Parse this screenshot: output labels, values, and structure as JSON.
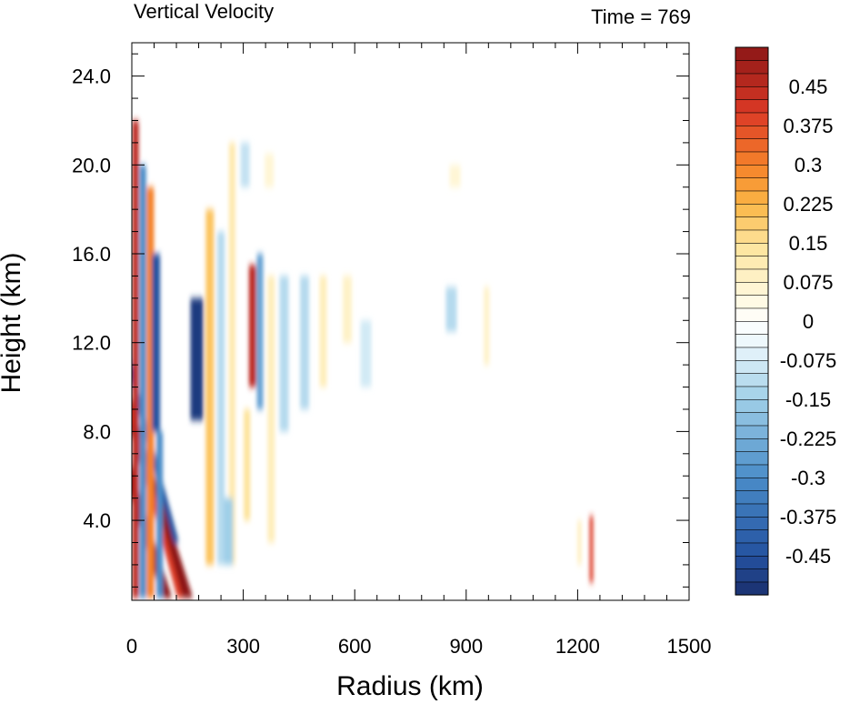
{
  "chart_data": {
    "type": "heatmap",
    "title_left": "Vertical Velocity",
    "title_right": "Time = 769",
    "xlabel": "Radius (km)",
    "ylabel": "Height (km)",
    "xlim": [
      0,
      1500
    ],
    "ylim": [
      0.4,
      25.5
    ],
    "xticks": [
      0,
      300,
      600,
      900,
      1200,
      1500
    ],
    "xtick_labels": [
      "0",
      "300",
      "600",
      "900",
      "1200",
      "1500"
    ],
    "yticks": [
      4,
      8,
      12,
      16,
      20,
      24
    ],
    "ytick_labels": [
      "4.0",
      "8.0",
      "12.0",
      "16.0",
      "20.0",
      "24.0"
    ],
    "colorbar": {
      "min": -0.525,
      "max": 0.525,
      "step": 0.025,
      "labels": [
        {
          "value": 0.45,
          "text": "0.45"
        },
        {
          "value": 0.375,
          "text": "0.375"
        },
        {
          "value": 0.3,
          "text": "0.3"
        },
        {
          "value": 0.225,
          "text": "0.225"
        },
        {
          "value": 0.15,
          "text": "0.15"
        },
        {
          "value": 0.075,
          "text": "0.075"
        },
        {
          "value": 0,
          "text": "0"
        },
        {
          "value": -0.075,
          "text": "-0.075"
        },
        {
          "value": -0.15,
          "text": "-0.15"
        },
        {
          "value": -0.225,
          "text": "-0.225"
        },
        {
          "value": -0.3,
          "text": "-0.3"
        },
        {
          "value": -0.375,
          "text": "-0.375"
        },
        {
          "value": -0.45,
          "text": "-0.45"
        }
      ],
      "stops": [
        {
          "v": -0.525,
          "color": "#1b2f6e"
        },
        {
          "v": -0.45,
          "color": "#2452a0"
        },
        {
          "v": -0.3,
          "color": "#4a8cc8"
        },
        {
          "v": -0.15,
          "color": "#9fcfe8"
        },
        {
          "v": -0.05,
          "color": "#e8f5fb"
        },
        {
          "v": 0,
          "color": "#ffffff"
        },
        {
          "v": 0.05,
          "color": "#fff8dc"
        },
        {
          "v": 0.15,
          "color": "#fde39a"
        },
        {
          "v": 0.225,
          "color": "#fbb545"
        },
        {
          "v": 0.3,
          "color": "#f5822a"
        },
        {
          "v": 0.4,
          "color": "#dc3a26"
        },
        {
          "v": 0.525,
          "color": "#8c1616"
        }
      ]
    },
    "features": [
      {
        "r": 95,
        "z0": 0.5,
        "z1": 17.2,
        "w": 0.6,
        "width": 11,
        "slope": -3.5
      },
      {
        "r": 150,
        "z0": 0.5,
        "z1": 17.2,
        "w": 0.55,
        "width": 12,
        "slope": -3.5
      },
      {
        "r": 175,
        "z0": 8.5,
        "z1": 14.0,
        "w": -0.5,
        "width": 14,
        "slope": 0
      },
      {
        "r": 120,
        "z0": 3.0,
        "z1": 16.5,
        "w": -0.45,
        "width": 6,
        "slope": -3
      },
      {
        "r": 130,
        "z0": 0.5,
        "z1": 16.0,
        "w": 0.4,
        "width": 6,
        "slope": -3
      },
      {
        "r": 10,
        "z0": 0.5,
        "z1": 22.0,
        "w": 0.45,
        "width": 7,
        "slope": 0
      },
      {
        "r": 30,
        "z0": 0.5,
        "z1": 20.0,
        "w": -0.3,
        "width": 7,
        "slope": 0
      },
      {
        "r": 50,
        "z0": 0.5,
        "z1": 19.0,
        "w": 0.3,
        "width": 8,
        "slope": 0
      },
      {
        "r": 65,
        "z0": 8.0,
        "z1": 16.0,
        "w": -0.45,
        "width": 9,
        "slope": 0
      },
      {
        "r": 75,
        "z0": 0.5,
        "z1": 8.0,
        "w": -0.3,
        "width": 7,
        "slope": 0
      },
      {
        "r": 210,
        "z0": 2.0,
        "z1": 18.0,
        "w": 0.2,
        "width": 9,
        "slope": 0
      },
      {
        "r": 240,
        "z0": 2.0,
        "z1": 17.0,
        "w": -0.12,
        "width": 8,
        "slope": 0
      },
      {
        "r": 270,
        "z0": 2.0,
        "z1": 21.0,
        "w": 0.12,
        "width": 7,
        "slope": 0
      },
      {
        "r": 325,
        "z0": 10.0,
        "z1": 15.5,
        "w": 0.45,
        "width": 8,
        "slope": 0
      },
      {
        "r": 345,
        "z0": 9.0,
        "z1": 16.0,
        "w": -0.25,
        "width": 7,
        "slope": 0
      },
      {
        "r": 310,
        "z0": 4.0,
        "z1": 9.0,
        "w": 0.15,
        "width": 7,
        "slope": 0
      },
      {
        "r": 375,
        "z0": 3.0,
        "z1": 15.0,
        "w": 0.1,
        "width": 8,
        "slope": 0
      },
      {
        "r": 410,
        "z0": 8.0,
        "z1": 15.0,
        "w": -0.12,
        "width": 10,
        "slope": 0
      },
      {
        "r": 465,
        "z0": 9.0,
        "z1": 15.0,
        "w": -0.12,
        "width": 10,
        "slope": 0
      },
      {
        "r": 515,
        "z0": 10.0,
        "z1": 15.0,
        "w": 0.1,
        "width": 8,
        "slope": 0
      },
      {
        "r": 580,
        "z0": 12.0,
        "z1": 15.0,
        "w": 0.08,
        "width": 10,
        "slope": 0
      },
      {
        "r": 630,
        "z0": 10.0,
        "z1": 13.0,
        "w": -0.08,
        "width": 12,
        "slope": 0
      },
      {
        "r": 860,
        "z0": 12.5,
        "z1": 14.5,
        "w": -0.12,
        "width": 12,
        "slope": 0
      },
      {
        "r": 955,
        "z0": 11.0,
        "z1": 14.5,
        "w": 0.08,
        "width": 6,
        "slope": 0
      },
      {
        "r": 1237,
        "z0": 1.2,
        "z1": 4.2,
        "w": 0.4,
        "width": 4,
        "slope": 0
      },
      {
        "r": 1205,
        "z0": 2.0,
        "z1": 4.0,
        "w": 0.1,
        "width": 4,
        "slope": 0
      },
      {
        "r": 260,
        "z0": 2.0,
        "z1": 5.0,
        "w": -0.15,
        "width": 10,
        "slope": 0
      },
      {
        "r": 370,
        "z0": 19.0,
        "z1": 20.5,
        "w": 0.06,
        "width": 10,
        "slope": 0
      },
      {
        "r": 870,
        "z0": 19.0,
        "z1": 20.0,
        "w": 0.06,
        "width": 12,
        "slope": 0
      },
      {
        "r": 305,
        "z0": 19.0,
        "z1": 21.0,
        "w": -0.1,
        "width": 10,
        "slope": 0
      }
    ]
  }
}
